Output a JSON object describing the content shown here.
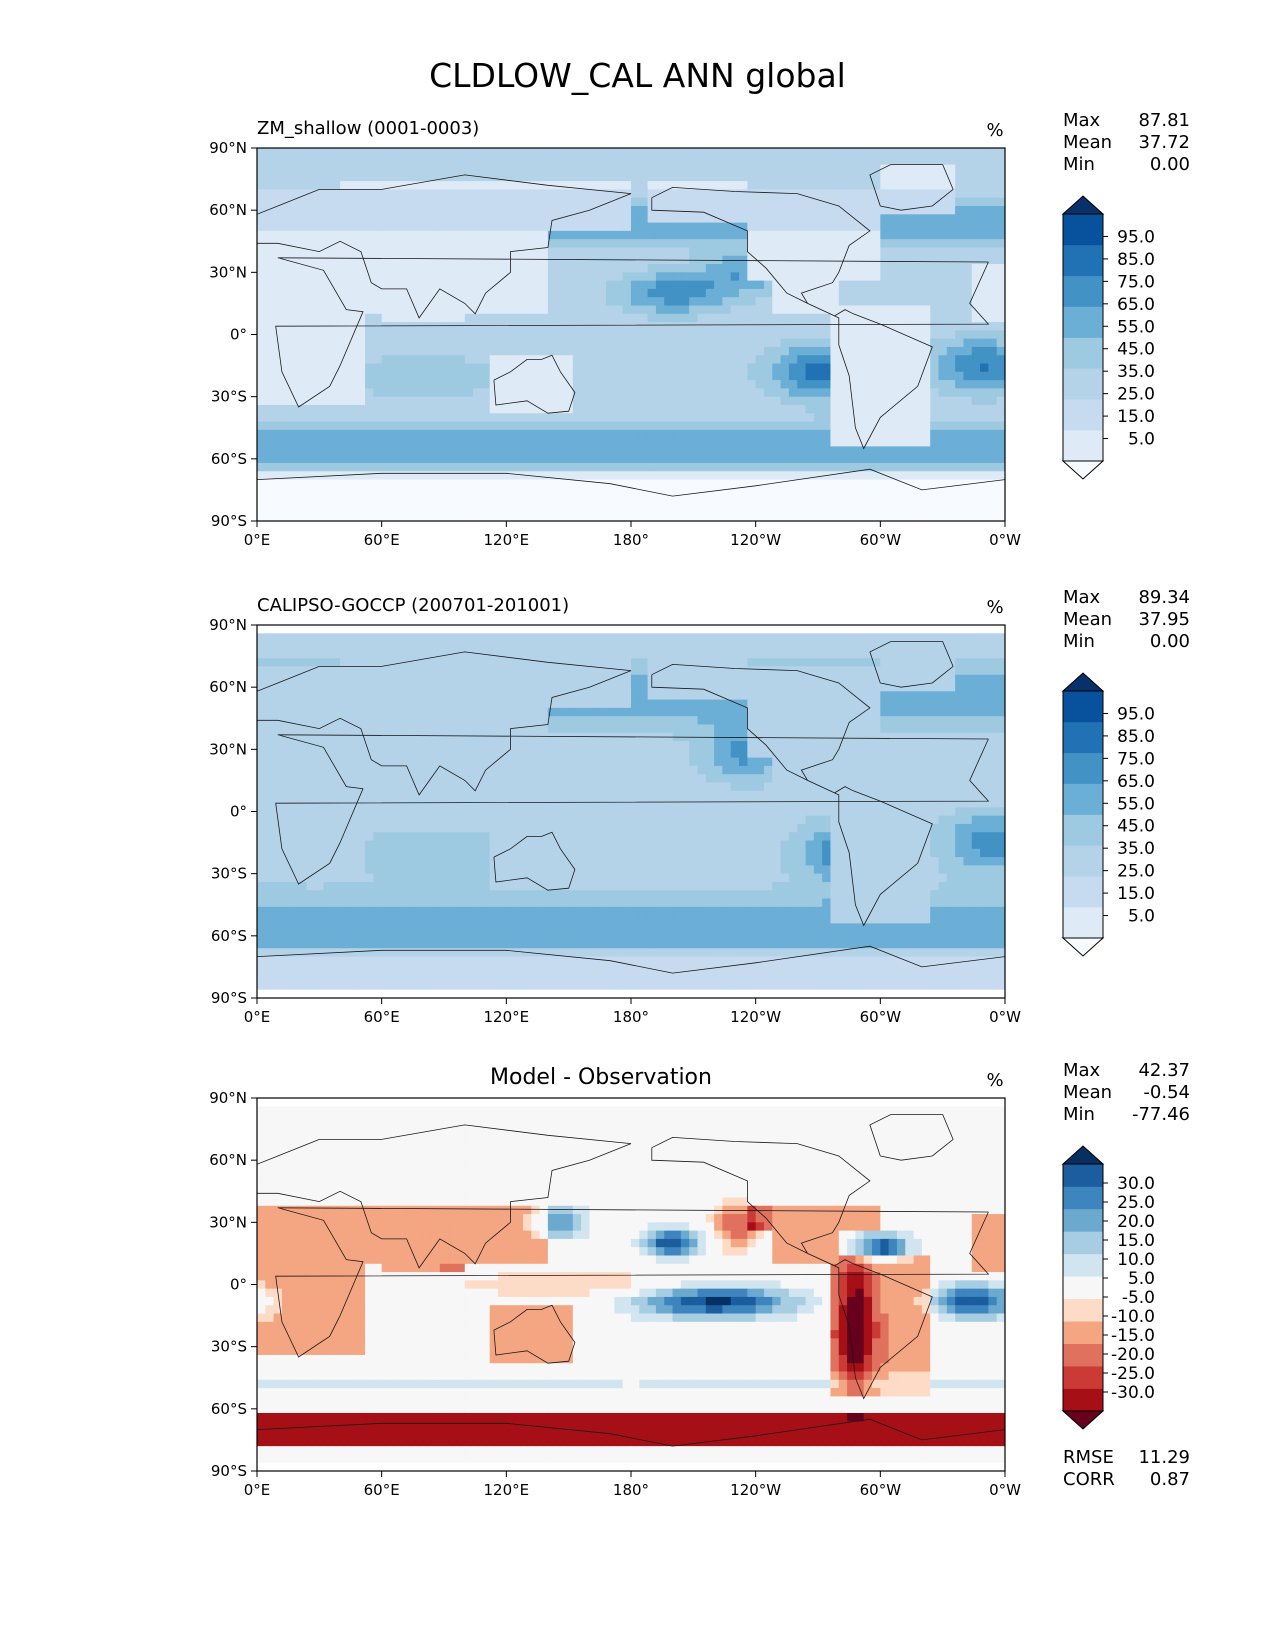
{
  "title": "CLDLOW_CAL ANN global",
  "colors": {
    "blues": [
      "#f7fbff",
      "#deebf7",
      "#c6dbef",
      "#b4d3e9",
      "#9ecae1",
      "#6baed6",
      "#4292c6",
      "#2171b5",
      "#08519c",
      "#08306b"
    ],
    "diverging": [
      "#67001f",
      "#a50f15",
      "#cb3a35",
      "#e0715e",
      "#f4a582",
      "#fddbc7",
      "#f7f7f7",
      "#d1e5f0",
      "#a6cde2",
      "#6ba9cf",
      "#3d85be",
      "#1b5d9e",
      "#053061"
    ],
    "land_outline": "#1a1a1a"
  },
  "chart_data": [
    {
      "type": "heatmap",
      "title": "ZM_shallow (0001-0003)",
      "units": "%",
      "stats": [
        {
          "label": "Max",
          "value": "87.81"
        },
        {
          "label": "Mean",
          "value": "37.72"
        },
        {
          "label": "Min",
          "value": "0.00"
        }
      ],
      "colorbar": {
        "palette": "blues",
        "labels": [
          "95.0",
          "85.0",
          "75.0",
          "65.0",
          "55.0",
          "45.0",
          "35.0",
          "25.0",
          "15.0",
          "5.0"
        ],
        "extend": "both"
      },
      "xticks": [
        "0°E",
        "60°E",
        "120°E",
        "180°",
        "120°W",
        "60°W",
        "0°W"
      ],
      "yticks": [
        "90°N",
        "60°N",
        "30°N",
        "0°",
        "30°S",
        "60°S",
        "90°S"
      ],
      "lat_range": [
        -90,
        90
      ],
      "lon_range": [
        0,
        360
      ],
      "field": "model"
    },
    {
      "type": "heatmap",
      "title": "CALIPSO-GOCCP (200701-201001)",
      "units": "%",
      "stats": [
        {
          "label": "Max",
          "value": "89.34"
        },
        {
          "label": "Mean",
          "value": "37.95"
        },
        {
          "label": "Min",
          "value": "0.00"
        }
      ],
      "colorbar": {
        "palette": "blues",
        "labels": [
          "95.0",
          "85.0",
          "75.0",
          "65.0",
          "55.0",
          "45.0",
          "35.0",
          "25.0",
          "15.0",
          "5.0"
        ],
        "extend": "both"
      },
      "xticks": [
        "0°E",
        "60°E",
        "120°E",
        "180°",
        "120°W",
        "60°W",
        "0°W"
      ],
      "yticks": [
        "90°N",
        "60°N",
        "30°N",
        "0°",
        "30°S",
        "60°S",
        "90°S"
      ],
      "lat_range": [
        -90,
        90
      ],
      "lon_range": [
        0,
        360
      ],
      "field": "obs"
    },
    {
      "type": "heatmap",
      "title": "Model - Observation",
      "units": "%",
      "stats": [
        {
          "label": "Max",
          "value": "42.37"
        },
        {
          "label": "Mean",
          "value": "-0.54"
        },
        {
          "label": "Min",
          "value": "-77.46"
        }
      ],
      "colorbar": {
        "palette": "diverging",
        "labels": [
          "30.0",
          "25.0",
          "20.0",
          "15.0",
          "10.0",
          "5.0",
          "-5.0",
          "-10.0",
          "-15.0",
          "-20.0",
          "-25.0",
          "-30.0"
        ],
        "extend": "both"
      },
      "xticks": [
        "0°E",
        "60°E",
        "120°E",
        "180°",
        "120°W",
        "60°W",
        "0°W"
      ],
      "yticks": [
        "90°N",
        "60°N",
        "30°N",
        "0°",
        "30°S",
        "60°S",
        "90°S"
      ],
      "lat_range": [
        -90,
        90
      ],
      "lon_range": [
        0,
        360
      ],
      "field": "diff",
      "metrics": [
        {
          "label": "RMSE",
          "value": "11.29"
        },
        {
          "label": "CORR",
          "value": "0.87"
        }
      ]
    }
  ]
}
